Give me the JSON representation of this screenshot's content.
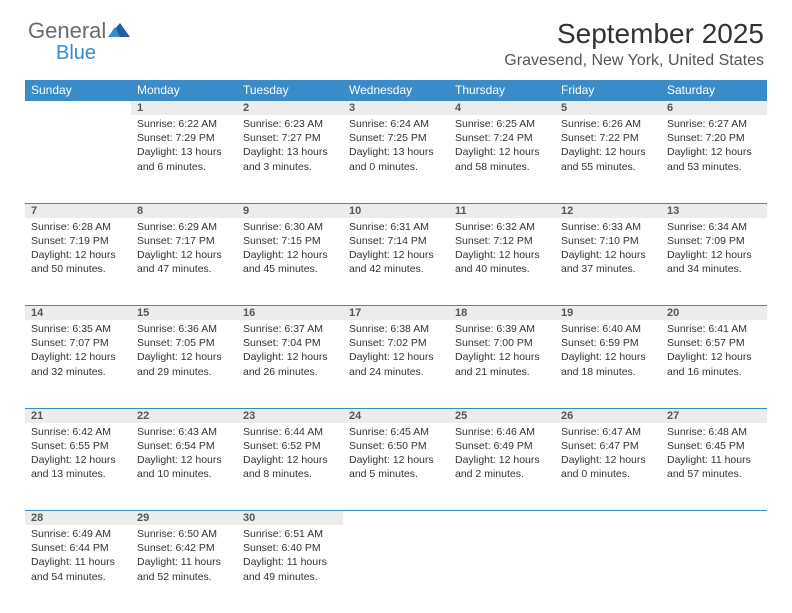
{
  "brand": {
    "part1": "General",
    "part2": "Blue",
    "color_general": "#6b6b6b",
    "color_blue": "#3a8cc9"
  },
  "title": "September 2025",
  "location": "Gravesend, New York, United States",
  "header_bg": "#3a8cc9",
  "header_fg": "#ffffff",
  "daynum_bg": "#ececec",
  "divider_color": "#3a8cc9",
  "text_color": "#333333",
  "font_family": "Arial, Helvetica, sans-serif",
  "title_fontsize": 28,
  "location_fontsize": 16,
  "header_fontsize": 12,
  "body_fontsize": 10.5,
  "columns": [
    "Sunday",
    "Monday",
    "Tuesday",
    "Wednesday",
    "Thursday",
    "Friday",
    "Saturday"
  ],
  "weeks": [
    [
      null,
      {
        "n": "1",
        "sunrise": "6:22 AM",
        "sunset": "7:29 PM",
        "daylight": "13 hours and 6 minutes."
      },
      {
        "n": "2",
        "sunrise": "6:23 AM",
        "sunset": "7:27 PM",
        "daylight": "13 hours and 3 minutes."
      },
      {
        "n": "3",
        "sunrise": "6:24 AM",
        "sunset": "7:25 PM",
        "daylight": "13 hours and 0 minutes."
      },
      {
        "n": "4",
        "sunrise": "6:25 AM",
        "sunset": "7:24 PM",
        "daylight": "12 hours and 58 minutes."
      },
      {
        "n": "5",
        "sunrise": "6:26 AM",
        "sunset": "7:22 PM",
        "daylight": "12 hours and 55 minutes."
      },
      {
        "n": "6",
        "sunrise": "6:27 AM",
        "sunset": "7:20 PM",
        "daylight": "12 hours and 53 minutes."
      }
    ],
    [
      {
        "n": "7",
        "sunrise": "6:28 AM",
        "sunset": "7:19 PM",
        "daylight": "12 hours and 50 minutes."
      },
      {
        "n": "8",
        "sunrise": "6:29 AM",
        "sunset": "7:17 PM",
        "daylight": "12 hours and 47 minutes."
      },
      {
        "n": "9",
        "sunrise": "6:30 AM",
        "sunset": "7:15 PM",
        "daylight": "12 hours and 45 minutes."
      },
      {
        "n": "10",
        "sunrise": "6:31 AM",
        "sunset": "7:14 PM",
        "daylight": "12 hours and 42 minutes."
      },
      {
        "n": "11",
        "sunrise": "6:32 AM",
        "sunset": "7:12 PM",
        "daylight": "12 hours and 40 minutes."
      },
      {
        "n": "12",
        "sunrise": "6:33 AM",
        "sunset": "7:10 PM",
        "daylight": "12 hours and 37 minutes."
      },
      {
        "n": "13",
        "sunrise": "6:34 AM",
        "sunset": "7:09 PM",
        "daylight": "12 hours and 34 minutes."
      }
    ],
    [
      {
        "n": "14",
        "sunrise": "6:35 AM",
        "sunset": "7:07 PM",
        "daylight": "12 hours and 32 minutes."
      },
      {
        "n": "15",
        "sunrise": "6:36 AM",
        "sunset": "7:05 PM",
        "daylight": "12 hours and 29 minutes."
      },
      {
        "n": "16",
        "sunrise": "6:37 AM",
        "sunset": "7:04 PM",
        "daylight": "12 hours and 26 minutes."
      },
      {
        "n": "17",
        "sunrise": "6:38 AM",
        "sunset": "7:02 PM",
        "daylight": "12 hours and 24 minutes."
      },
      {
        "n": "18",
        "sunrise": "6:39 AM",
        "sunset": "7:00 PM",
        "daylight": "12 hours and 21 minutes."
      },
      {
        "n": "19",
        "sunrise": "6:40 AM",
        "sunset": "6:59 PM",
        "daylight": "12 hours and 18 minutes."
      },
      {
        "n": "20",
        "sunrise": "6:41 AM",
        "sunset": "6:57 PM",
        "daylight": "12 hours and 16 minutes."
      }
    ],
    [
      {
        "n": "21",
        "sunrise": "6:42 AM",
        "sunset": "6:55 PM",
        "daylight": "12 hours and 13 minutes."
      },
      {
        "n": "22",
        "sunrise": "6:43 AM",
        "sunset": "6:54 PM",
        "daylight": "12 hours and 10 minutes."
      },
      {
        "n": "23",
        "sunrise": "6:44 AM",
        "sunset": "6:52 PM",
        "daylight": "12 hours and 8 minutes."
      },
      {
        "n": "24",
        "sunrise": "6:45 AM",
        "sunset": "6:50 PM",
        "daylight": "12 hours and 5 minutes."
      },
      {
        "n": "25",
        "sunrise": "6:46 AM",
        "sunset": "6:49 PM",
        "daylight": "12 hours and 2 minutes."
      },
      {
        "n": "26",
        "sunrise": "6:47 AM",
        "sunset": "6:47 PM",
        "daylight": "12 hours and 0 minutes."
      },
      {
        "n": "27",
        "sunrise": "6:48 AM",
        "sunset": "6:45 PM",
        "daylight": "11 hours and 57 minutes."
      }
    ],
    [
      {
        "n": "28",
        "sunrise": "6:49 AM",
        "sunset": "6:44 PM",
        "daylight": "11 hours and 54 minutes."
      },
      {
        "n": "29",
        "sunrise": "6:50 AM",
        "sunset": "6:42 PM",
        "daylight": "11 hours and 52 minutes."
      },
      {
        "n": "30",
        "sunrise": "6:51 AM",
        "sunset": "6:40 PM",
        "daylight": "11 hours and 49 minutes."
      },
      null,
      null,
      null,
      null
    ]
  ],
  "labels": {
    "sunrise": "Sunrise:",
    "sunset": "Sunset:",
    "daylight": "Daylight:"
  }
}
